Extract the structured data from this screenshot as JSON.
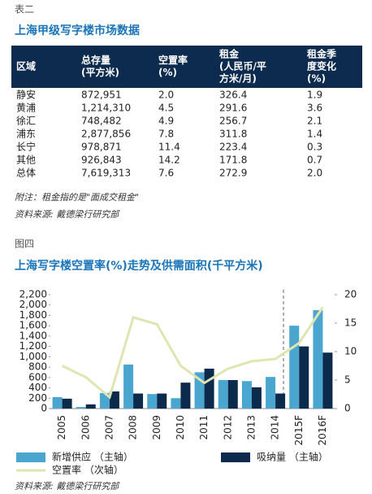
{
  "table_section": {
    "label": "表二",
    "title": "上海甲级写字楼市场数据",
    "headers": [
      [
        "区域"
      ],
      [
        "总存量",
        "(平方米)"
      ],
      [
        "空置率",
        "(%)"
      ],
      [
        "租金",
        "(人民币/平",
        "方米/月)"
      ],
      [
        "租金季",
        "度变化",
        "(%)"
      ]
    ],
    "rows": [
      [
        "静安",
        "872,951",
        "2.0",
        "326.4",
        "1.9"
      ],
      [
        "黄浦",
        "1,214,310",
        "4.5",
        "291.6",
        "3.6"
      ],
      [
        "徐汇",
        "748,482",
        "4.9",
        "256.7",
        "2.1"
      ],
      [
        "浦东",
        "2,877,856",
        "7.8",
        "311.8",
        "1.4"
      ],
      [
        "长宁",
        "978,871",
        "11.4",
        "223.4",
        "0.3"
      ],
      [
        "其他",
        "926,843",
        "14.2",
        "171.8",
        "0.7"
      ],
      [
        "总体",
        "7,619,313",
        "7.6",
        "272.9",
        "2.0"
      ]
    ],
    "note": "附注：租金指的是\"面成交租金\"",
    "source": "资料来源: 戴德梁行研究部"
  },
  "figure_label": "图四",
  "chart_data": {
    "type": "bar",
    "title": "上海写字楼空置率(%)走势及供需面积(千平方米)",
    "categories": [
      "2005",
      "2006",
      "2007",
      "2008",
      "2009",
      "2010",
      "2011",
      "2012",
      "2013",
      "2014",
      "2015F",
      "2016F"
    ],
    "series": [
      {
        "name": "新增供应 （主轴）",
        "color": "#4aa6cf",
        "type": "bar",
        "values": [
          220,
          30,
          300,
          850,
          280,
          200,
          700,
          550,
          530,
          610,
          1600,
          1900
        ]
      },
      {
        "name": "吸纳量 （主轴）",
        "color": "#0c2a4c",
        "type": "bar",
        "values": [
          190,
          80,
          330,
          290,
          290,
          500,
          770,
          550,
          410,
          290,
          1200,
          1080
        ]
      },
      {
        "name": "空置率 （次轴）",
        "color": "#dfe5b0",
        "type": "line",
        "axis": "y2",
        "values": [
          7.5,
          5.5,
          2,
          16,
          14.8,
          7.5,
          4.5,
          7,
          8.3,
          8.7,
          11.5,
          17.8
        ]
      }
    ],
    "ylim": [
      0,
      2200
    ],
    "yticks": [
      0,
      200,
      400,
      600,
      800,
      {
        "value": 1000,
        "label": "1,000"
      },
      {
        "value": 1200,
        "label": "1,200"
      },
      {
        "value": 1400,
        "label": "1,400"
      },
      {
        "value": 1600,
        "label": "1,600"
      },
      {
        "value": 1800,
        "label": "1,800"
      },
      {
        "value": 2000,
        "label": "2,000"
      },
      {
        "value": 2200,
        "label": "2,200"
      }
    ],
    "y2lim": [
      0,
      20
    ],
    "y2ticks": [
      0,
      5,
      10,
      15,
      20
    ],
    "source": "资料来源: 戴德梁行研究部"
  }
}
